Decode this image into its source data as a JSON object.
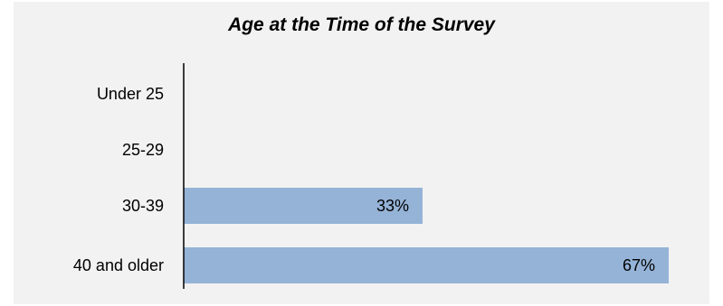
{
  "chart_data": {
    "type": "bar",
    "orientation": "horizontal",
    "title": "Age at the Time of the Survey",
    "categories": [
      "Under 25",
      "25-29",
      "30-39",
      "40 and older"
    ],
    "values": [
      0,
      0,
      33,
      67
    ],
    "value_labels": [
      "",
      "",
      "33%",
      "67%"
    ],
    "xlim": [
      0,
      100
    ],
    "bar_color": "#95b3d7",
    "axis_color": "#000000",
    "grid": false,
    "legend": "none"
  }
}
